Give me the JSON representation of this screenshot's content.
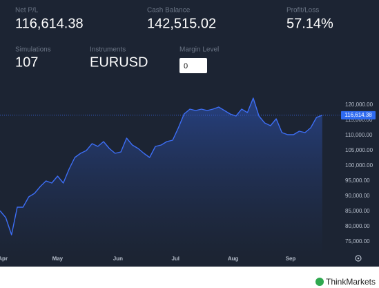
{
  "stats": [
    {
      "label": "Net P/L",
      "value": "116,614.38"
    },
    {
      "label": "Cash Balance",
      "value": "142,515.02"
    },
    {
      "label": "Profit/Loss",
      "value": "57.14%"
    },
    {
      "label": "Simulations",
      "value": "107"
    },
    {
      "label": "Instruments",
      "value": "EURUSD"
    }
  ],
  "margin_level": {
    "label": "Margin Level",
    "input": "0"
  },
  "footer": {
    "brand": "ThinkMarkets"
  },
  "chart_data": {
    "type": "area",
    "series": [
      {
        "color": "#3d6ef5",
        "x": [
          0,
          2,
          4,
          6,
          8,
          10,
          12,
          14,
          16,
          18,
          20,
          22,
          24,
          26,
          28,
          30,
          32,
          34,
          36,
          38,
          40,
          42,
          44,
          46,
          48,
          50,
          52,
          54,
          56,
          58,
          60,
          62,
          64,
          66,
          68,
          70,
          72,
          74,
          76,
          78,
          80,
          82,
          84,
          86,
          88,
          90,
          92,
          94,
          96,
          98,
          100,
          102,
          104,
          106,
          108,
          110,
          112
        ],
        "values": [
          85200,
          82950,
          77270,
          86360,
          86360,
          89770,
          90910,
          93180,
          95000,
          94320,
          96590,
          94320,
          98860,
          102730,
          104090,
          105000,
          107270,
          106360,
          107950,
          105680,
          104090,
          104550,
          109090,
          106820,
          105680,
          104090,
          102730,
          106360,
          106820,
          107950,
          108410,
          112500,
          117050,
          118640,
          118180,
          118640,
          118180,
          118640,
          119320,
          118180,
          117050,
          116360,
          118640,
          117500,
          122270,
          116360,
          114090,
          113180,
          115450,
          110910,
          110230,
          110230,
          111360,
          110910,
          112500,
          115910,
          116614.38
        ]
      }
    ],
    "current_value": {
      "value": 116614.38,
      "label": "116,614.38"
    },
    "xlim": [
      0,
      112
    ],
    "xticks": [
      {
        "value": 1,
        "label": "Apr"
      },
      {
        "value": 20,
        "label": "May"
      },
      {
        "value": 41,
        "label": "Jun"
      },
      {
        "value": 61,
        "label": "Jul"
      },
      {
        "value": 81,
        "label": "Aug"
      },
      {
        "value": 101,
        "label": "Sep"
      }
    ],
    "ylim": [
      70000,
      125000
    ],
    "yticks": [
      {
        "value": 75000,
        "label": "75,000.00"
      },
      {
        "value": 80000,
        "label": "80,000.00"
      },
      {
        "value": 85000,
        "label": "85,000.00"
      },
      {
        "value": 90000,
        "label": "90,000.00"
      },
      {
        "value": 95000,
        "label": "95,000.00"
      },
      {
        "value": 100000,
        "label": "100,000.00"
      },
      {
        "value": 105000,
        "label": "105,000.00"
      },
      {
        "value": 110000,
        "label": "110,000.00"
      },
      {
        "value": 115000,
        "label": "115,000.00"
      },
      {
        "value": 120000,
        "label": "120,000.00"
      }
    ],
    "grid": false
  }
}
